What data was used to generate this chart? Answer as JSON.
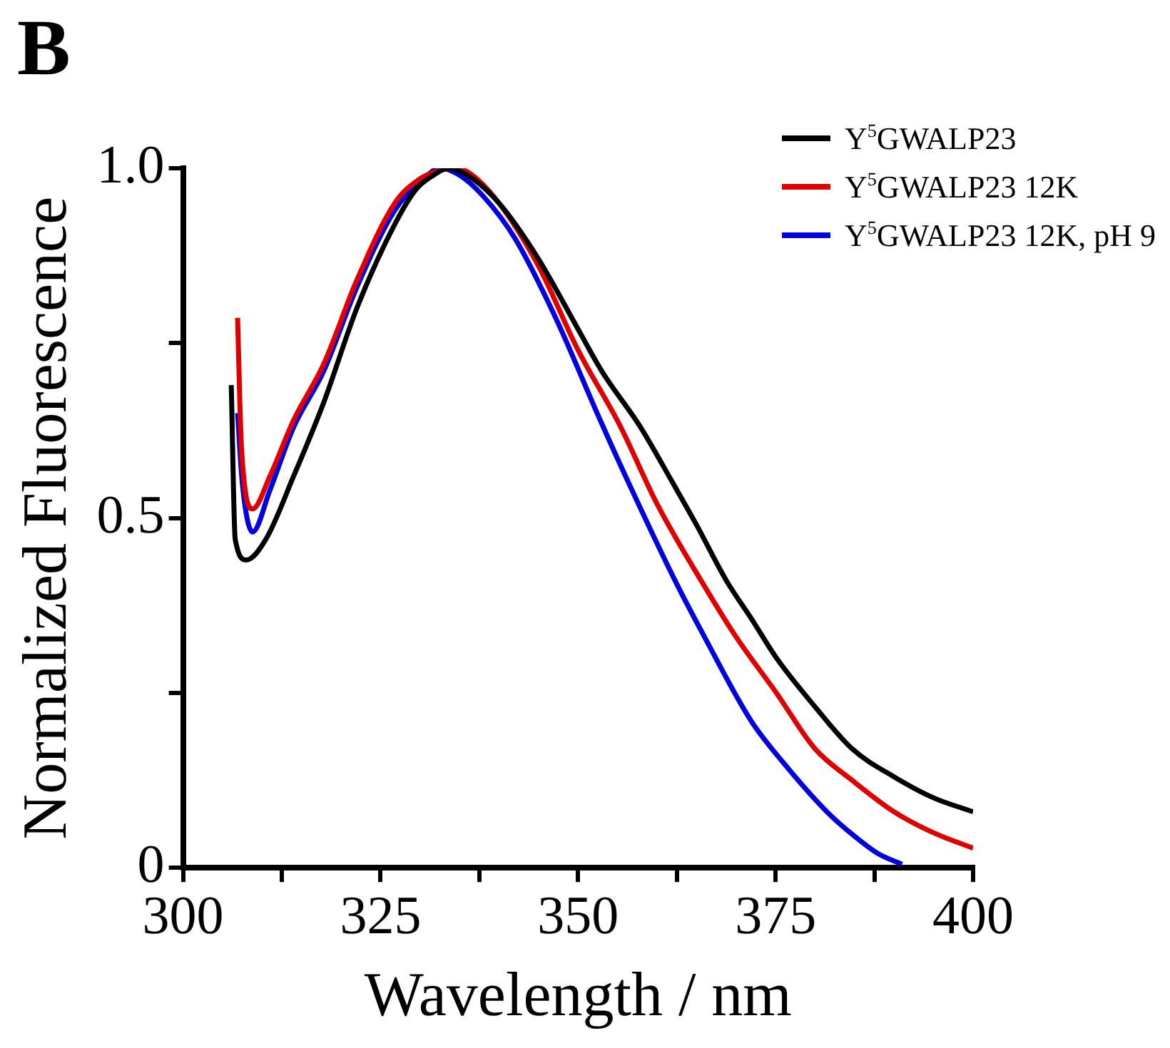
{
  "chart_data": {
    "type": "line",
    "xlabel": "Wavelength / nm",
    "ylabel": "Normalized Fluorescence",
    "annotations": [
      "B"
    ],
    "xlim": [
      300,
      400
    ],
    "ylim": [
      0,
      1
    ],
    "xticks": [
      300,
      {
        "value": 312.5,
        "label": null
      },
      325,
      {
        "value": 337.5,
        "label": null
      },
      350,
      {
        "value": 362.5,
        "label": null
      },
      375,
      {
        "value": 387.5,
        "label": null
      },
      400
    ],
    "yticks": [
      0,
      {
        "value": 0.25,
        "label": null
      },
      0.5,
      {
        "value": 0.75,
        "label": null
      },
      {
        "value": 1,
        "label": "1.0"
      }
    ],
    "grid": false,
    "legend": "top right",
    "marker": "none",
    "line_style": "solid",
    "series": [
      {
        "name": "Y$^{5}$GWALP23",
        "color": "#000000",
        "x": [
          306.1,
          306.6,
          308,
          310.5,
          314,
          317.8,
          322,
          326.8,
          329.5,
          331.7,
          333.5,
          336,
          340,
          345,
          350,
          353,
          357.9,
          362,
          365,
          368.8,
          372,
          375.1,
          380,
          384.7,
          390,
          395,
          400
        ],
        "values": [
          0.69,
          0.47,
          0.44,
          0.47,
          0.56,
          0.665,
          0.8,
          0.92,
          0.97,
          0.99,
          1.0,
          0.99,
          0.95,
          0.87,
          0.77,
          0.71,
          0.63,
          0.55,
          0.49,
          0.41,
          0.355,
          0.3,
          0.23,
          0.17,
          0.13,
          0.1,
          0.08
        ]
      },
      {
        "name": "Y$^{5}$GWALP23 12K",
        "color": "#e00000",
        "x": [
          306.9,
          307.4,
          308.8,
          311,
          314,
          317.8,
          322,
          326.8,
          330,
          332,
          334,
          336,
          340,
          345,
          350,
          355.4,
          360,
          365.6,
          370,
          375.1,
          380,
          384.7,
          390,
          395,
          400
        ],
        "values": [
          0.786,
          0.6,
          0.513,
          0.56,
          0.64,
          0.72,
          0.84,
          0.95,
          0.985,
          0.995,
          1.0,
          0.995,
          0.95,
          0.86,
          0.74,
          0.63,
          0.52,
          0.41,
          0.33,
          0.25,
          0.17,
          0.125,
          0.08,
          0.05,
          0.028
        ]
      },
      {
        "name": "Y$^{5}$GWALP23 12K, pH 9",
        "color": "#0000e0",
        "x": [
          306.9,
          307.5,
          308.8,
          311,
          314,
          317.8,
          322,
          326.8,
          330,
          332.5,
          335,
          338,
          342,
          347,
          352.8,
          356,
          362.3,
          366,
          371.9,
          376,
          381.5,
          385,
          388,
          391
        ],
        "values": [
          0.65,
          0.55,
          0.48,
          0.54,
          0.63,
          0.71,
          0.83,
          0.94,
          0.98,
          1.0,
          0.99,
          0.96,
          0.9,
          0.79,
          0.64,
          0.56,
          0.41,
          0.33,
          0.21,
          0.15,
          0.08,
          0.045,
          0.02,
          0.005
        ]
      }
    ]
  }
}
